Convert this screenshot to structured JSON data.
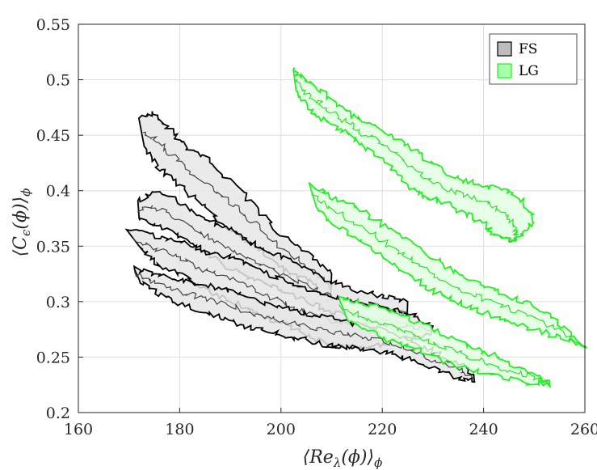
{
  "chart_data": {
    "type": "area",
    "xlabel": "⟨Reλ(ϕ)⟩ϕ",
    "ylabel": "⟨Cϵ(ϕ)⟩ϕ",
    "xlim": [
      160,
      260
    ],
    "ylim": [
      0.2,
      0.55
    ],
    "xticks": [
      160,
      180,
      200,
      220,
      240,
      260
    ],
    "yticks": [
      0.2,
      0.25,
      0.3,
      0.35,
      0.4,
      0.45,
      0.5,
      0.55
    ],
    "xtick_labels": [
      "160",
      "180",
      "200",
      "220",
      "240",
      "260"
    ],
    "ytick_labels": [
      "0.2",
      "0.25",
      "0.3",
      "0.35",
      "0.4",
      "0.45",
      "0.5",
      "0.55"
    ],
    "grid": true,
    "legend_position": "top-right",
    "series": [
      {
        "name": "FS",
        "fill": "#e6e6e6",
        "stroke": "#000000",
        "bands": [
          {
            "upper": [
              [
                172.5,
                0.465
              ],
              [
                175,
                0.47
              ],
              [
                178,
                0.455
              ],
              [
                181,
                0.44
              ],
              [
                185,
                0.43
              ],
              [
                190,
                0.41
              ],
              [
                195,
                0.385
              ],
              [
                200,
                0.36
              ],
              [
                205,
                0.345
              ],
              [
                210,
                0.325
              ]
            ],
            "lower": [
              [
                210,
                0.3
              ],
              [
                205,
                0.32
              ],
              [
                200,
                0.33
              ],
              [
                195,
                0.35
              ],
              [
                190,
                0.365
              ],
              [
                185,
                0.385
              ],
              [
                180,
                0.405
              ],
              [
                176,
                0.42
              ],
              [
                173,
                0.44
              ]
            ]
          },
          {
            "upper": [
              [
                172,
                0.39
              ],
              [
                175,
                0.4
              ],
              [
                180,
                0.39
              ],
              [
                185,
                0.375
              ],
              [
                190,
                0.365
              ],
              [
                195,
                0.35
              ],
              [
                200,
                0.34
              ],
              [
                205,
                0.33
              ],
              [
                210,
                0.318
              ],
              [
                215,
                0.31
              ],
              [
                220,
                0.305
              ],
              [
                225,
                0.3
              ]
            ],
            "lower": [
              [
                225,
                0.28
              ],
              [
                220,
                0.283
              ],
              [
                215,
                0.287
              ],
              [
                210,
                0.29
              ],
              [
                205,
                0.3
              ],
              [
                200,
                0.31
              ],
              [
                195,
                0.32
              ],
              [
                190,
                0.33
              ],
              [
                185,
                0.345
              ],
              [
                180,
                0.36
              ],
              [
                175,
                0.37
              ],
              [
                172,
                0.375
              ]
            ]
          },
          {
            "upper": [
              [
                170,
                0.365
              ],
              [
                175,
                0.36
              ],
              [
                180,
                0.355
              ],
              [
                185,
                0.345
              ],
              [
                190,
                0.34
              ],
              [
                195,
                0.33
              ],
              [
                200,
                0.32
              ],
              [
                205,
                0.31
              ],
              [
                210,
                0.305
              ],
              [
                215,
                0.3
              ],
              [
                220,
                0.295
              ],
              [
                225,
                0.29
              ],
              [
                230,
                0.278
              ]
            ],
            "lower": [
              [
                230,
                0.27
              ],
              [
                225,
                0.268
              ],
              [
                220,
                0.262
              ],
              [
                215,
                0.258
              ],
              [
                210,
                0.26
              ],
              [
                205,
                0.27
              ],
              [
                200,
                0.28
              ],
              [
                195,
                0.29
              ],
              [
                190,
                0.3
              ],
              [
                185,
                0.31
              ],
              [
                180,
                0.325
              ],
              [
                175,
                0.335
              ],
              [
                172,
                0.35
              ]
            ]
          },
          {
            "upper": [
              [
                171,
                0.33
              ],
              [
                175,
                0.325
              ],
              [
                180,
                0.32
              ],
              [
                185,
                0.315
              ],
              [
                190,
                0.31
              ],
              [
                195,
                0.3
              ],
              [
                200,
                0.295
              ],
              [
                205,
                0.29
              ],
              [
                210,
                0.285
              ],
              [
                215,
                0.28
              ],
              [
                220,
                0.275
              ],
              [
                225,
                0.265
              ],
              [
                230,
                0.255
              ],
              [
                235,
                0.245
              ],
              [
                238,
                0.235
              ]
            ],
            "lower": [
              [
                238,
                0.228
              ],
              [
                235,
                0.232
              ],
              [
                230,
                0.24
              ],
              [
                225,
                0.248
              ],
              [
                220,
                0.255
              ],
              [
                215,
                0.258
              ],
              [
                210,
                0.26
              ],
              [
                205,
                0.265
              ],
              [
                200,
                0.27
              ],
              [
                195,
                0.275
              ],
              [
                190,
                0.283
              ],
              [
                185,
                0.29
              ],
              [
                180,
                0.298
              ],
              [
                175,
                0.31
              ],
              [
                172,
                0.32
              ]
            ]
          }
        ]
      },
      {
        "name": "LG",
        "fill": "#e2ffe2",
        "stroke": "#22ee22",
        "bands": [
          {
            "upper": [
              [
                202,
                0.51
              ],
              [
                205,
                0.5
              ],
              [
                208,
                0.49
              ],
              [
                212,
                0.475
              ],
              [
                215,
                0.465
              ],
              [
                220,
                0.455
              ],
              [
                225,
                0.44
              ],
              [
                230,
                0.425
              ],
              [
                235,
                0.41
              ],
              [
                240,
                0.405
              ],
              [
                245,
                0.4
              ],
              [
                248,
                0.39
              ],
              [
                250,
                0.375
              ],
              [
                248,
                0.36
              ],
              [
                245,
                0.355
              ]
            ],
            "lower": [
              [
                245,
                0.355
              ],
              [
                242,
                0.36
              ],
              [
                240,
                0.37
              ],
              [
                236,
                0.38
              ],
              [
                232,
                0.39
              ],
              [
                228,
                0.395
              ],
              [
                225,
                0.405
              ],
              [
                222,
                0.42
              ],
              [
                218,
                0.435
              ],
              [
                215,
                0.445
              ],
              [
                212,
                0.455
              ],
              [
                208,
                0.465
              ],
              [
                205,
                0.475
              ],
              [
                203,
                0.49
              ]
            ]
          },
          {
            "upper": [
              [
                206,
                0.405
              ],
              [
                210,
                0.395
              ],
              [
                215,
                0.385
              ],
              [
                220,
                0.37
              ],
              [
                225,
                0.355
              ],
              [
                230,
                0.34
              ],
              [
                235,
                0.325
              ],
              [
                240,
                0.315
              ],
              [
                245,
                0.305
              ],
              [
                250,
                0.295
              ],
              [
                255,
                0.28
              ],
              [
                260,
                0.26
              ]
            ],
            "lower": [
              [
                260,
                0.258
              ],
              [
                255,
                0.268
              ],
              [
                250,
                0.275
              ],
              [
                245,
                0.283
              ],
              [
                240,
                0.29
              ],
              [
                235,
                0.3
              ],
              [
                230,
                0.31
              ],
              [
                225,
                0.325
              ],
              [
                220,
                0.34
              ],
              [
                215,
                0.355
              ],
              [
                210,
                0.37
              ],
              [
                207,
                0.385
              ]
            ]
          },
          {
            "upper": [
              [
                211,
                0.305
              ],
              [
                215,
                0.3
              ],
              [
                220,
                0.295
              ],
              [
                225,
                0.285
              ],
              [
                230,
                0.275
              ],
              [
                235,
                0.265
              ],
              [
                240,
                0.255
              ],
              [
                245,
                0.245
              ],
              [
                250,
                0.235
              ],
              [
                253,
                0.226
              ]
            ],
            "lower": [
              [
                253,
                0.226
              ],
              [
                248,
                0.228
              ],
              [
                243,
                0.232
              ],
              [
                238,
                0.238
              ],
              [
                233,
                0.245
              ],
              [
                228,
                0.255
              ],
              [
                223,
                0.262
              ],
              [
                218,
                0.272
              ],
              [
                213,
                0.285
              ]
            ]
          }
        ]
      }
    ]
  }
}
